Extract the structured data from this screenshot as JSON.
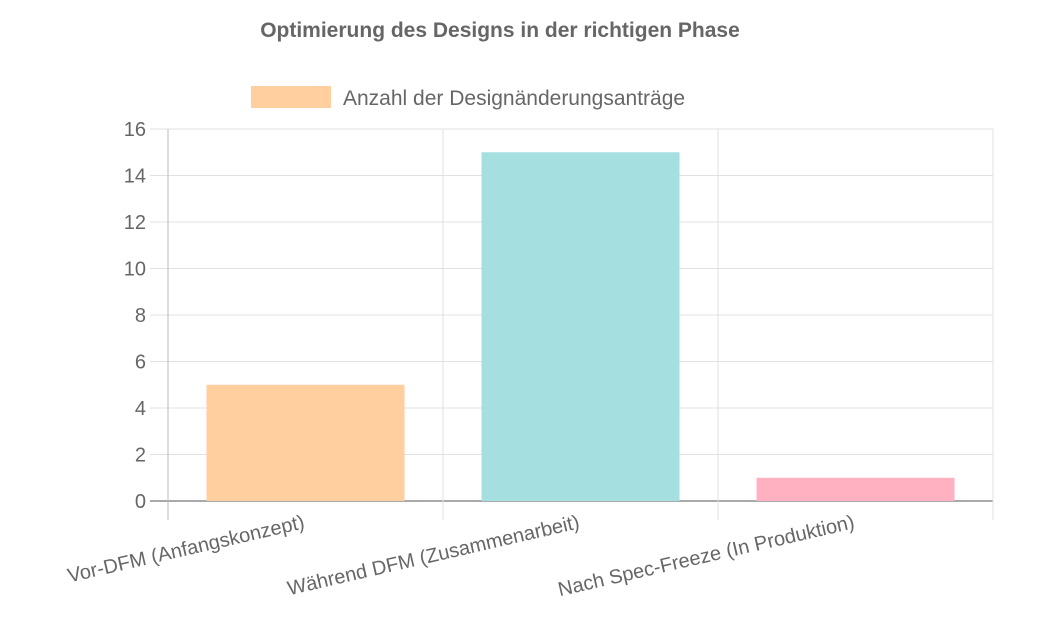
{
  "chart_data": {
    "type": "bar",
    "title": "Optimierung des Designs in der richtigen Phase",
    "legend": {
      "label": "Anzahl der Designänderungsanträge",
      "position": "top"
    },
    "categories": [
      "Vor-DFM (Anfangskonzept)",
      "Während DFM (Zusammenarbeit)",
      "Nach Spec-Freeze (In Produktion)"
    ],
    "values": [
      5,
      15,
      1
    ],
    "colors": [
      "#ffcf9f",
      "#a5dfdf",
      "#ffb1c1"
    ],
    "legend_color": "#ffcf9f",
    "ylim": [
      0,
      16
    ],
    "yticks": [
      0,
      2,
      4,
      6,
      8,
      10,
      12,
      14,
      16
    ],
    "xlabel": "",
    "ylabel": "",
    "grid": true
  }
}
